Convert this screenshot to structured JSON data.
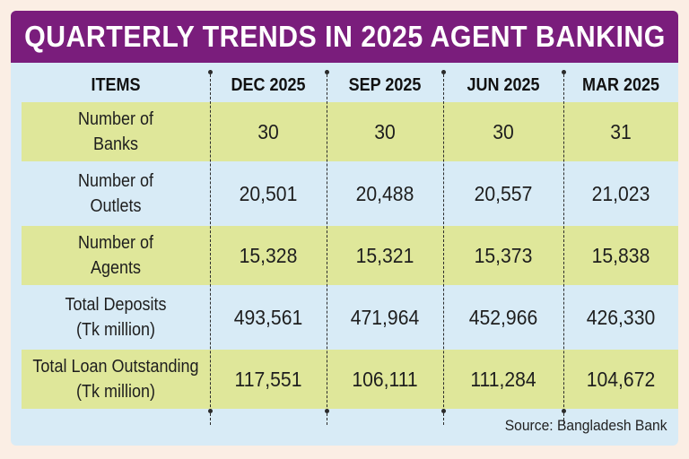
{
  "chart_data": {
    "type": "table",
    "title": "QUARTERLY TRENDS IN 2025 AGENT BANKING",
    "columns": [
      "ITEMS",
      "DEC 2025",
      "SEP 2025",
      "JUN 2025",
      "MAR 2025"
    ],
    "rows": [
      {
        "item": "Number of Banks",
        "values": [
          "30",
          "30",
          "30",
          "31"
        ]
      },
      {
        "item": "Number of Outlets",
        "values": [
          "20,501",
          "20,488",
          "20,557",
          "21,023"
        ]
      },
      {
        "item": "Number of Agents",
        "values": [
          "15,328",
          "15,321",
          "15,373",
          "15,838"
        ]
      },
      {
        "item": "Total Deposits (Tk million)",
        "values": [
          "493,561",
          "471,964",
          "452,966",
          "426,330"
        ]
      },
      {
        "item": "Total Loan Outstanding (Tk million)",
        "values": [
          "117,551",
          "106,111",
          "111,284",
          "104,672"
        ]
      }
    ],
    "source": "Source: Bangladesh Bank"
  },
  "row_labels": [
    [
      "Number of",
      "Banks"
    ],
    [
      "Number of",
      "Outlets"
    ],
    [
      "Number of",
      "Agents"
    ],
    [
      "Total Deposits",
      "(Tk million)"
    ],
    [
      "Total Loan Outstanding",
      "(Tk million)"
    ]
  ],
  "colors": {
    "banner": "#7a1d7c",
    "background": "#d8ebf6",
    "shaded_row": "#dfe79a",
    "page": "#fbeee4"
  }
}
